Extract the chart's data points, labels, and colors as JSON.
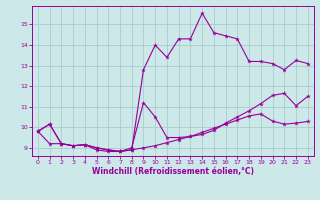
{
  "xlabel": "Windchill (Refroidissement éolien,°C)",
  "bg_color": "#cce8e8",
  "grid_color": "#aacccc",
  "line_color": "#990099",
  "xlim": [
    -0.5,
    23.5
  ],
  "ylim": [
    8.6,
    15.9
  ],
  "xticks": [
    0,
    1,
    2,
    3,
    4,
    5,
    6,
    7,
    8,
    9,
    10,
    11,
    12,
    13,
    14,
    15,
    16,
    17,
    18,
    19,
    20,
    21,
    22,
    23
  ],
  "yticks": [
    9,
    10,
    11,
    12,
    13,
    14,
    15
  ],
  "line1_x": [
    0,
    1,
    2,
    3,
    4,
    5,
    6,
    7,
    8,
    9,
    10,
    11,
    12,
    13,
    14,
    15,
    16,
    17,
    18,
    19,
    20,
    21,
    22,
    23
  ],
  "line1_y": [
    9.8,
    10.15,
    9.2,
    9.1,
    9.15,
    8.9,
    8.82,
    8.82,
    8.9,
    9.0,
    9.1,
    9.25,
    9.4,
    9.55,
    9.75,
    9.95,
    10.15,
    10.35,
    10.55,
    10.65,
    10.3,
    10.15,
    10.2,
    10.28
  ],
  "line2_x": [
    0,
    1,
    2,
    3,
    4,
    5,
    6,
    7,
    8,
    9,
    10,
    11,
    12,
    13,
    14,
    15,
    16,
    17,
    18,
    19,
    20,
    21,
    22,
    23
  ],
  "line2_y": [
    9.8,
    9.2,
    9.2,
    9.1,
    9.15,
    9.0,
    8.9,
    8.82,
    9.0,
    11.2,
    10.5,
    9.5,
    9.5,
    9.55,
    9.65,
    9.85,
    10.2,
    10.5,
    10.8,
    11.15,
    11.55,
    11.65,
    11.05,
    11.5
  ],
  "line3_x": [
    0,
    1,
    2,
    3,
    4,
    5,
    6,
    7,
    8,
    9,
    10,
    11,
    12,
    13,
    14,
    15,
    16,
    17,
    18,
    19,
    20,
    21,
    22,
    23
  ],
  "line3_y": [
    9.8,
    10.15,
    9.2,
    9.1,
    9.15,
    9.0,
    8.9,
    8.82,
    8.9,
    12.8,
    14.0,
    13.4,
    14.3,
    14.3,
    15.55,
    14.6,
    14.45,
    14.3,
    13.2,
    13.2,
    13.1,
    12.8,
    13.25,
    13.1
  ]
}
